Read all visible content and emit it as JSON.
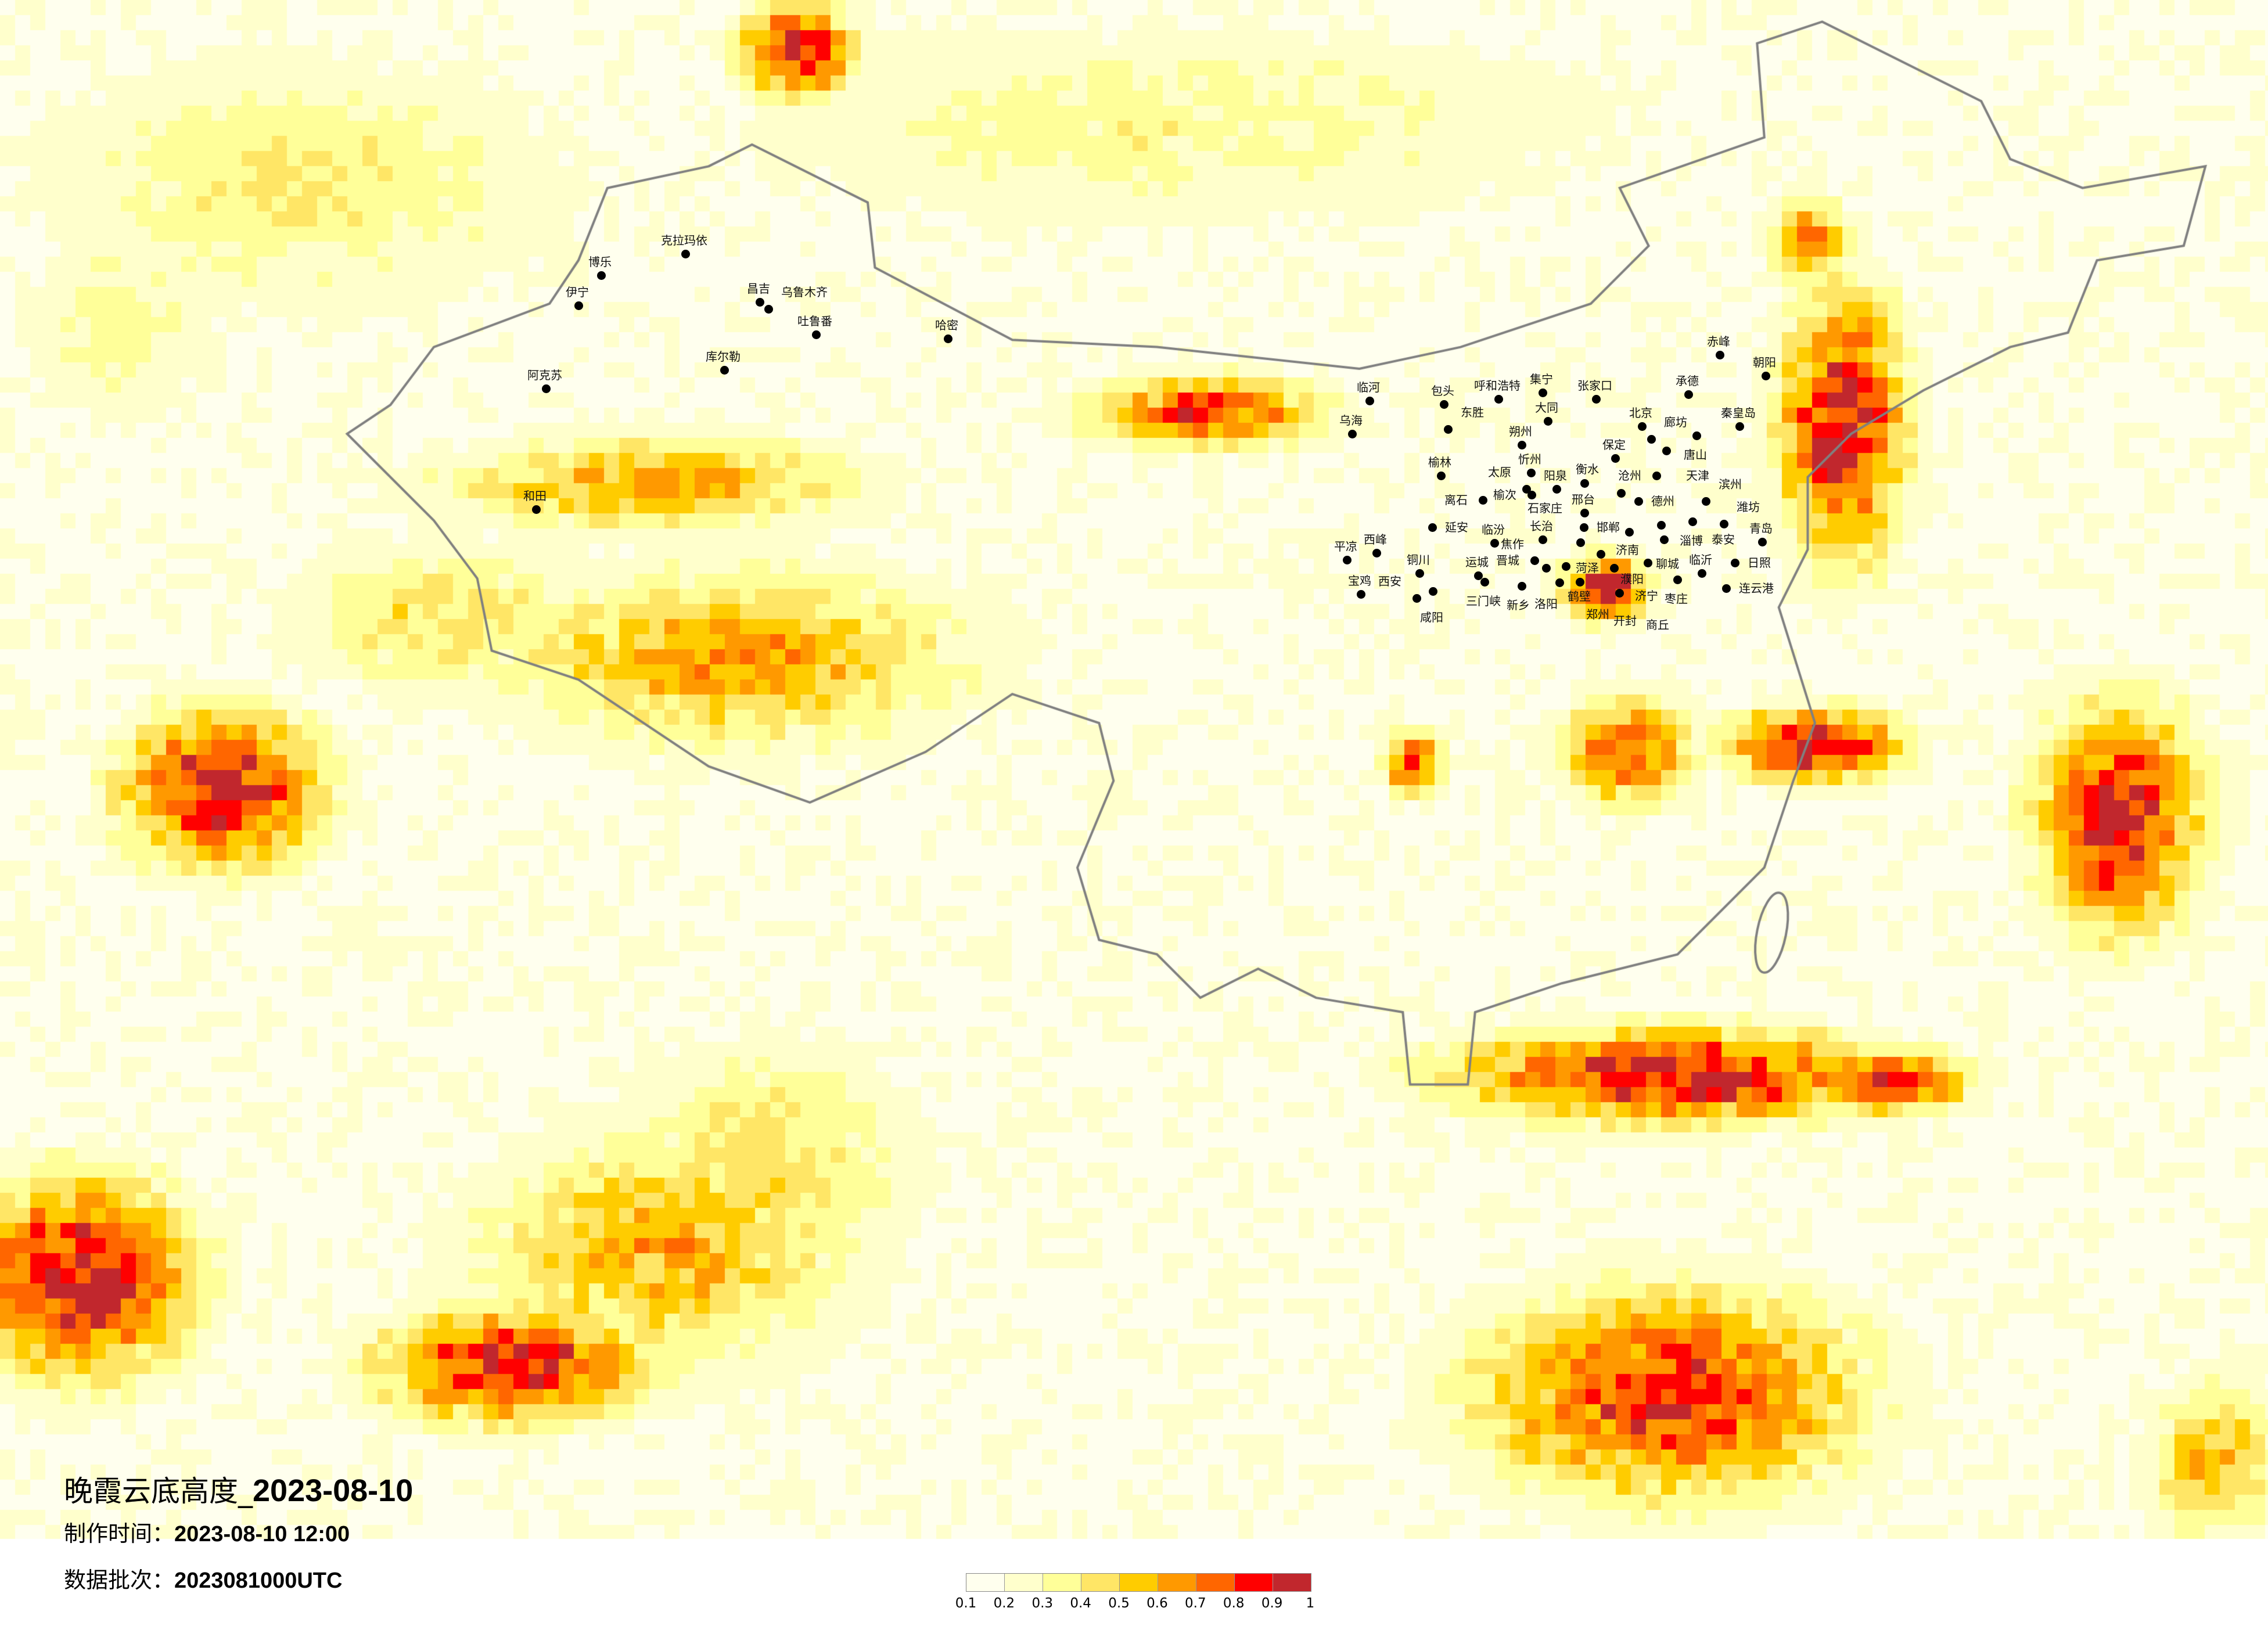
{
  "title": {
    "prefix": "晚霞云底高度_",
    "date": "2023-08-10"
  },
  "made_time": {
    "label": "制作时间：",
    "value": "2023-08-10 12:00"
  },
  "data_batch": {
    "label": "数据批次：",
    "value": "2023081000UTC"
  },
  "legend": {
    "labels": [
      "0.1",
      "0.2",
      "0.3",
      "0.4",
      "0.5",
      "0.6",
      "0.7",
      "0.8",
      "0.9",
      "1"
    ],
    "colors": [
      "#ffffee",
      "#ffffcc",
      "#ffff99",
      "#ffe666",
      "#ffcc00",
      "#ff9900",
      "#ff6600",
      "#ff0000",
      "#c1272d"
    ]
  },
  "map": {
    "background_color": "#fffff0",
    "border_color": "#808080",
    "cities": [
      "克拉玛依",
      "博乐",
      "伊宁",
      "昌吉",
      "乌鲁木齐",
      "吐鲁番",
      "哈密",
      "库尔勒",
      "阿克苏",
      "和田",
      "赤峰",
      "朝阳",
      "呼和浩特",
      "集宁",
      "张家口",
      "承德",
      "临河",
      "包头",
      "大同",
      "东胜",
      "乌海",
      "北京",
      "廊坊",
      "唐山",
      "秦皇岛",
      "天津",
      "保定",
      "朔州",
      "榆林",
      "忻州",
      "太原",
      "榆次",
      "阳泉",
      "石家庄",
      "沧州",
      "衡水",
      "德州",
      "离石",
      "邢台",
      "邯郸",
      "滨州",
      "淄博",
      "潍坊",
      "济南",
      "聊城",
      "泰安",
      "延安",
      "临汾",
      "长治",
      "鹤壁",
      "青岛",
      "濮阳",
      "晋城",
      "焦作",
      "新乡",
      "菏泽",
      "济宁",
      "日照",
      "运城",
      "三门峡",
      "洛阳",
      "郑州",
      "开封",
      "枣庄",
      "临沂",
      "连云港",
      "商丘",
      "铜川",
      "宝鸡",
      "咸阳",
      "西安",
      "平凉",
      "西峰"
    ]
  }
}
